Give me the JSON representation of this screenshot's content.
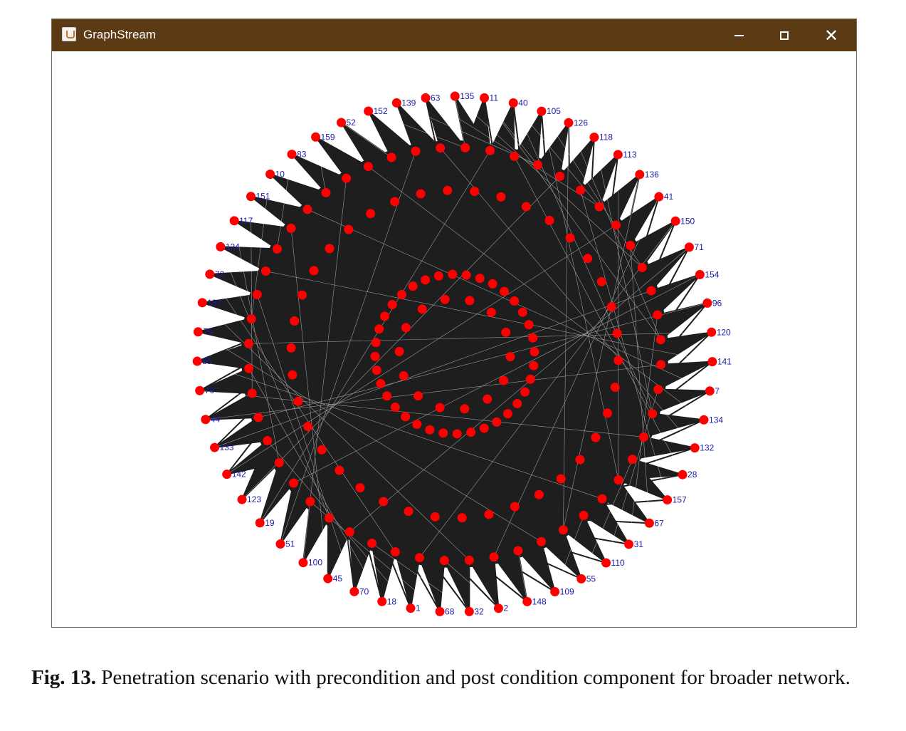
{
  "window": {
    "title": "GraphStream"
  },
  "caption": {
    "label": "Fig. 13.",
    "text": "Penetration scenario with precondition and post condition component for broader network."
  },
  "graph": {
    "node_color": "#ff0000",
    "edge_color": "#1e1e1e",
    "label_color": "#1c1ca8",
    "outer_labels": [
      "135",
      "11",
      "40",
      "105",
      "126",
      "118",
      "113",
      "136",
      "41",
      "150",
      "71",
      "154",
      "96",
      "120",
      "141",
      "7",
      "134",
      "132",
      "28",
      "157",
      "67",
      "31",
      "110",
      "55",
      "109",
      "148",
      "2",
      "32",
      "68",
      "1",
      "18",
      "70",
      "45",
      "100",
      "51",
      "19",
      "123",
      "142",
      "133",
      "44",
      "76",
      "85",
      "79",
      "137",
      "72",
      "124",
      "117",
      "151",
      "10",
      "83",
      "159",
      "52",
      "152",
      "139",
      "63"
    ]
  }
}
